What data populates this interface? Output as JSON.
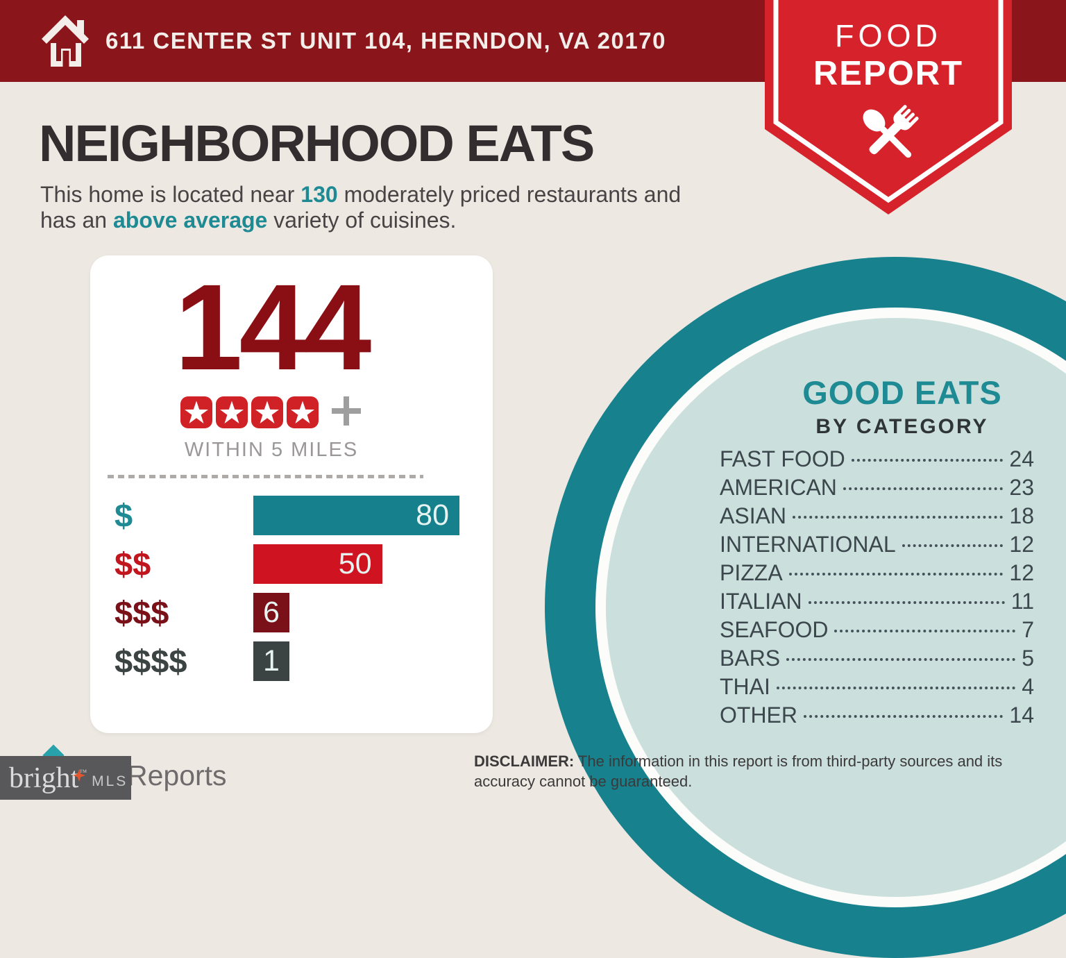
{
  "header": {
    "address": "611 CENTER ST UNIT 104, HERNDON, VA 20170"
  },
  "badge": {
    "line1": "FOOD",
    "line2": "REPORT"
  },
  "headline": {
    "title": "NEIGHBORHOOD EATS"
  },
  "intro": {
    "pre": "This home is located near ",
    "count": "130",
    "mid1": " moderately priced restaurants and",
    "mid2": "has an ",
    "highlight": "above average",
    "post": " variety of cuisines."
  },
  "summary": {
    "total": "144",
    "star_count": 4,
    "radius_label": "WITHIN 5 MILES"
  },
  "good_eats": {
    "title": "GOOD EATS",
    "subtitle": "BY CATEGORY"
  },
  "disclaimer": {
    "label": "DISCLAIMER:",
    "text": " The information in this report is from third-party sources and its accuracy cannot be guaranteed."
  },
  "footer": {
    "partial_logo_text": "Reports",
    "watermark_brand": "bright",
    "watermark_tm": "™",
    "watermark_suffix": "MLS"
  },
  "colors": {
    "header_maroon": "#8A151A",
    "badge_red": "#D6232B",
    "accent_teal": "#1E8A94",
    "dark_red": "#8A0F15",
    "star_red": "#D02226",
    "ring_teal": "#17818D",
    "mint": "#CBE0DC",
    "beige": "#EDE8E2"
  },
  "chart_data": [
    {
      "type": "bar",
      "title": "Restaurants by price tier within 5 miles",
      "orientation": "horizontal",
      "categories": [
        "$",
        "$$",
        "$$$",
        "$$$$"
      ],
      "values": [
        80,
        50,
        6,
        1
      ],
      "bar_colors": [
        "#16818D",
        "#D01320",
        "#7A1119",
        "#3C4443"
      ],
      "label_colors": [
        "#1E8A94",
        "#C2161F",
        "#7A1119",
        "#3C4443"
      ],
      "xlim": [
        0,
        80
      ],
      "value_labels": true,
      "grid": false,
      "legend": false
    },
    {
      "type": "table",
      "title": "GOOD EATS BY CATEGORY",
      "categories": [
        "FAST FOOD",
        "AMERICAN",
        "ASIAN",
        "INTERNATIONAL",
        "PIZZA",
        "ITALIAN",
        "SEAFOOD",
        "BARS",
        "THAI",
        "OTHER"
      ],
      "values": [
        24,
        23,
        18,
        12,
        12,
        11,
        7,
        5,
        4,
        14
      ]
    }
  ]
}
